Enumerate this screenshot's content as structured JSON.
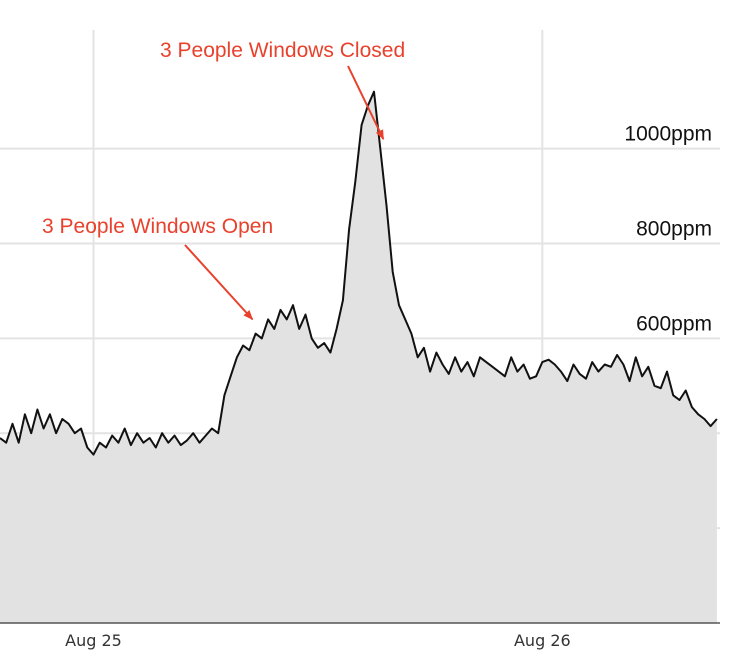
{
  "chart_data": {
    "type": "area",
    "title": "",
    "xlabel": "",
    "ylabel": "",
    "unit": "ppm",
    "x_range": [
      "2021-08-24T19:00",
      "2021-08-26T09:30"
    ],
    "ylim": [
      0,
      1250
    ],
    "x_ticks": [
      {
        "value": "2021-08-25T00:00",
        "label": "Aug 25"
      },
      {
        "value": "2021-08-26T00:00",
        "label": "Aug 26"
      }
    ],
    "y_ticks": [
      {
        "value": 1000,
        "label": "1000ppm"
      },
      {
        "value": 800,
        "label": "800ppm"
      },
      {
        "value": 600,
        "label": "600ppm"
      }
    ],
    "grid": {
      "horizontal": [
        200,
        400,
        600,
        800,
        1000
      ],
      "vertical": true
    },
    "series_color": "#111111",
    "fill_color": "#e2e2e2",
    "annotation_color": "#e8412c",
    "annotations": [
      {
        "text": "3 People Windows Open",
        "x": "2021-08-25T08:30",
        "y": 640
      },
      {
        "text": "3 People Windows Closed",
        "x": "2021-08-25T15:30",
        "y": 1020
      }
    ],
    "series": [
      {
        "values": [
          [
            "2021-08-24T19:00",
            390
          ],
          [
            "2021-08-24T19:20",
            380
          ],
          [
            "2021-08-24T19:40",
            420
          ],
          [
            "2021-08-24T20:00",
            380
          ],
          [
            "2021-08-24T20:20",
            440
          ],
          [
            "2021-08-24T20:40",
            400
          ],
          [
            "2021-08-24T21:00",
            450
          ],
          [
            "2021-08-24T21:20",
            410
          ],
          [
            "2021-08-24T21:40",
            440
          ],
          [
            "2021-08-24T22:00",
            400
          ],
          [
            "2021-08-24T22:20",
            430
          ],
          [
            "2021-08-24T22:40",
            420
          ],
          [
            "2021-08-24T23:00",
            400
          ],
          [
            "2021-08-24T23:20",
            410
          ],
          [
            "2021-08-24T23:40",
            370
          ],
          [
            "2021-08-25T00:00",
            355
          ],
          [
            "2021-08-25T00:20",
            380
          ],
          [
            "2021-08-25T00:40",
            370
          ],
          [
            "2021-08-25T01:00",
            395
          ],
          [
            "2021-08-25T01:20",
            380
          ],
          [
            "2021-08-25T01:40",
            410
          ],
          [
            "2021-08-25T02:00",
            375
          ],
          [
            "2021-08-25T02:20",
            400
          ],
          [
            "2021-08-25T02:40",
            380
          ],
          [
            "2021-08-25T03:00",
            390
          ],
          [
            "2021-08-25T03:20",
            370
          ],
          [
            "2021-08-25T03:40",
            400
          ],
          [
            "2021-08-25T04:00",
            380
          ],
          [
            "2021-08-25T04:20",
            395
          ],
          [
            "2021-08-25T04:40",
            375
          ],
          [
            "2021-08-25T05:00",
            385
          ],
          [
            "2021-08-25T05:20",
            400
          ],
          [
            "2021-08-25T05:40",
            380
          ],
          [
            "2021-08-25T06:00",
            395
          ],
          [
            "2021-08-25T06:20",
            410
          ],
          [
            "2021-08-25T06:40",
            400
          ],
          [
            "2021-08-25T07:00",
            480
          ],
          [
            "2021-08-25T07:20",
            520
          ],
          [
            "2021-08-25T07:40",
            560
          ],
          [
            "2021-08-25T08:00",
            585
          ],
          [
            "2021-08-25T08:20",
            575
          ],
          [
            "2021-08-25T08:40",
            610
          ],
          [
            "2021-08-25T09:00",
            600
          ],
          [
            "2021-08-25T09:20",
            640
          ],
          [
            "2021-08-25T09:40",
            620
          ],
          [
            "2021-08-25T10:00",
            660
          ],
          [
            "2021-08-25T10:20",
            640
          ],
          [
            "2021-08-25T10:40",
            670
          ],
          [
            "2021-08-25T11:00",
            620
          ],
          [
            "2021-08-25T11:20",
            650
          ],
          [
            "2021-08-25T11:40",
            600
          ],
          [
            "2021-08-25T12:00",
            580
          ],
          [
            "2021-08-25T12:20",
            590
          ],
          [
            "2021-08-25T12:40",
            570
          ],
          [
            "2021-08-25T13:00",
            620
          ],
          [
            "2021-08-25T13:20",
            680
          ],
          [
            "2021-08-25T13:40",
            830
          ],
          [
            "2021-08-25T14:00",
            930
          ],
          [
            "2021-08-25T14:20",
            1050
          ],
          [
            "2021-08-25T14:40",
            1090
          ],
          [
            "2021-08-25T15:00",
            1120
          ],
          [
            "2021-08-25T15:20",
            1000
          ],
          [
            "2021-08-25T15:40",
            880
          ],
          [
            "2021-08-25T16:00",
            740
          ],
          [
            "2021-08-25T16:20",
            670
          ],
          [
            "2021-08-25T16:40",
            640
          ],
          [
            "2021-08-25T17:00",
            610
          ],
          [
            "2021-08-25T17:20",
            560
          ],
          [
            "2021-08-25T17:40",
            580
          ],
          [
            "2021-08-25T18:00",
            530
          ],
          [
            "2021-08-25T18:20",
            570
          ],
          [
            "2021-08-25T18:40",
            545
          ],
          [
            "2021-08-25T19:00",
            525
          ],
          [
            "2021-08-25T19:20",
            560
          ],
          [
            "2021-08-25T19:40",
            530
          ],
          [
            "2021-08-25T20:00",
            550
          ],
          [
            "2021-08-25T20:20",
            520
          ],
          [
            "2021-08-25T20:40",
            560
          ],
          [
            "2021-08-25T21:00",
            550
          ],
          [
            "2021-08-25T21:20",
            540
          ],
          [
            "2021-08-25T21:40",
            530
          ],
          [
            "2021-08-25T22:00",
            520
          ],
          [
            "2021-08-25T22:20",
            560
          ],
          [
            "2021-08-25T22:40",
            530
          ],
          [
            "2021-08-25T23:00",
            545
          ],
          [
            "2021-08-25T23:20",
            515
          ],
          [
            "2021-08-25T23:40",
            520
          ],
          [
            "2021-08-26T00:00",
            550
          ],
          [
            "2021-08-26T00:20",
            555
          ],
          [
            "2021-08-26T00:40",
            545
          ],
          [
            "2021-08-26T01:00",
            530
          ],
          [
            "2021-08-26T01:20",
            510
          ],
          [
            "2021-08-26T01:40",
            545
          ],
          [
            "2021-08-26T02:00",
            525
          ],
          [
            "2021-08-26T02:20",
            515
          ],
          [
            "2021-08-26T02:40",
            550
          ],
          [
            "2021-08-26T03:00",
            530
          ],
          [
            "2021-08-26T03:20",
            545
          ],
          [
            "2021-08-26T03:40",
            540
          ],
          [
            "2021-08-26T04:00",
            565
          ],
          [
            "2021-08-26T04:20",
            545
          ],
          [
            "2021-08-26T04:40",
            510
          ],
          [
            "2021-08-26T05:00",
            560
          ],
          [
            "2021-08-26T05:20",
            520
          ],
          [
            "2021-08-26T05:40",
            540
          ],
          [
            "2021-08-26T06:00",
            500
          ],
          [
            "2021-08-26T06:20",
            495
          ],
          [
            "2021-08-26T06:40",
            530
          ],
          [
            "2021-08-26T07:00",
            480
          ],
          [
            "2021-08-26T07:20",
            470
          ],
          [
            "2021-08-26T07:40",
            490
          ],
          [
            "2021-08-26T08:00",
            455
          ],
          [
            "2021-08-26T08:20",
            440
          ],
          [
            "2021-08-26T08:40",
            430
          ],
          [
            "2021-08-26T09:00",
            415
          ],
          [
            "2021-08-26T09:20",
            430
          ]
        ]
      }
    ]
  }
}
